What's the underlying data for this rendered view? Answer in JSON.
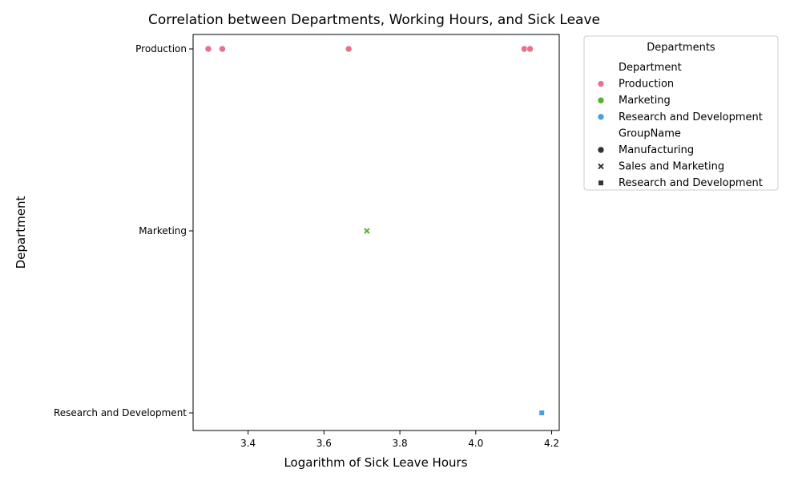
{
  "chart_data": {
    "type": "scatter",
    "title": "Correlation between Departments, Working Hours, and Sick Leave",
    "xlabel": "Logarithm of Sick Leave Hours",
    "ylabel": "Department",
    "xlim": [
      3.255,
      4.22
    ],
    "x_ticks": [
      "3.4",
      "3.6",
      "3.8",
      "4.0",
      "4.2"
    ],
    "y_categories": [
      "Production",
      "Marketing",
      "Research and Development"
    ],
    "points": [
      {
        "x": 3.295,
        "y": "Production",
        "department": "Production",
        "group": "Manufacturing"
      },
      {
        "x": 3.332,
        "y": "Production",
        "department": "Production",
        "group": "Manufacturing"
      },
      {
        "x": 3.665,
        "y": "Production",
        "department": "Production",
        "group": "Manufacturing"
      },
      {
        "x": 4.128,
        "y": "Production",
        "department": "Production",
        "group": "Manufacturing"
      },
      {
        "x": 4.143,
        "y": "Production",
        "department": "Production",
        "group": "Manufacturing"
      },
      {
        "x": 3.713,
        "y": "Marketing",
        "department": "Marketing",
        "group": "Sales and Marketing"
      },
      {
        "x": 4.174,
        "y": "Research and Development",
        "department": "Research and Development",
        "group": "Research and Development"
      }
    ],
    "grid": false,
    "legend": {
      "title": "Departments",
      "placement": "outside-top-right",
      "hue_title": "Department",
      "hue": [
        {
          "label": "Production",
          "color": "#e8718d"
        },
        {
          "label": "Marketing",
          "color": "#55b22e"
        },
        {
          "label": "Research and Development",
          "color": "#4a9fe0"
        }
      ],
      "style_title": "GroupName",
      "style": [
        {
          "label": "Manufacturing",
          "marker": "circle"
        },
        {
          "label": "Sales and Marketing",
          "marker": "x"
        },
        {
          "label": "Research and Development",
          "marker": "square"
        }
      ]
    }
  }
}
